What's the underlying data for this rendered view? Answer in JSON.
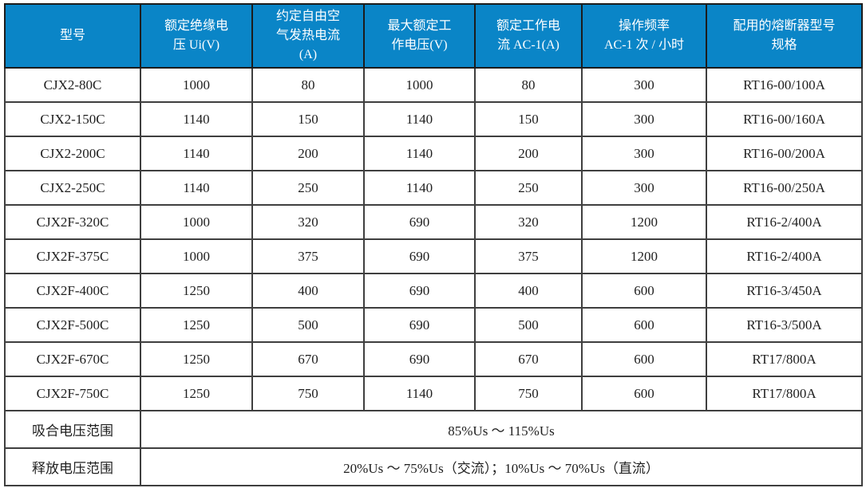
{
  "table": {
    "columns": [
      "型号",
      "额定绝缘电\n压 Ui(V)",
      "约定自由空\n气发热电流\n(A)",
      "最大额定工\n作电压(V)",
      "额定工作电\n流 AC-1(A)",
      "操作频率\nAC-1 次 / 小时",
      "配用的熔断器型号\n规格"
    ],
    "rows": [
      [
        "CJX2-80C",
        "1000",
        "80",
        "1000",
        "80",
        "300",
        "RT16-00/100A"
      ],
      [
        "CJX2-150C",
        "1140",
        "150",
        "1140",
        "150",
        "300",
        "RT16-00/160A"
      ],
      [
        "CJX2-200C",
        "1140",
        "200",
        "1140",
        "200",
        "300",
        "RT16-00/200A"
      ],
      [
        "CJX2-250C",
        "1140",
        "250",
        "1140",
        "250",
        "300",
        "RT16-00/250A"
      ],
      [
        "CJX2F-320C",
        "1000",
        "320",
        "690",
        "320",
        "1200",
        "RT16-2/400A"
      ],
      [
        "CJX2F-375C",
        "1000",
        "375",
        "690",
        "375",
        "1200",
        "RT16-2/400A"
      ],
      [
        "CJX2F-400C",
        "1250",
        "400",
        "690",
        "400",
        "600",
        "RT16-3/450A"
      ],
      [
        "CJX2F-500C",
        "1250",
        "500",
        "690",
        "500",
        "600",
        "RT16-3/500A"
      ],
      [
        "CJX2F-670C",
        "1250",
        "670",
        "690",
        "670",
        "600",
        "RT17/800A"
      ],
      [
        "CJX2F-750C",
        "1250",
        "750",
        "1140",
        "750",
        "600",
        "RT17/800A"
      ]
    ],
    "footer_rows": [
      {
        "label": "吸合电压范围",
        "value": "85%Us ～ 115%Us"
      },
      {
        "label": "释放电压范围",
        "value": "20%Us ～ 75%Us（交流）；10%Us ～ 70%Us（直流）"
      }
    ],
    "colors": {
      "header_bg": "#0a85c7",
      "header_text": "#ffffff",
      "border": "#3f3f3f",
      "body_text": "#1f1f1f"
    }
  }
}
